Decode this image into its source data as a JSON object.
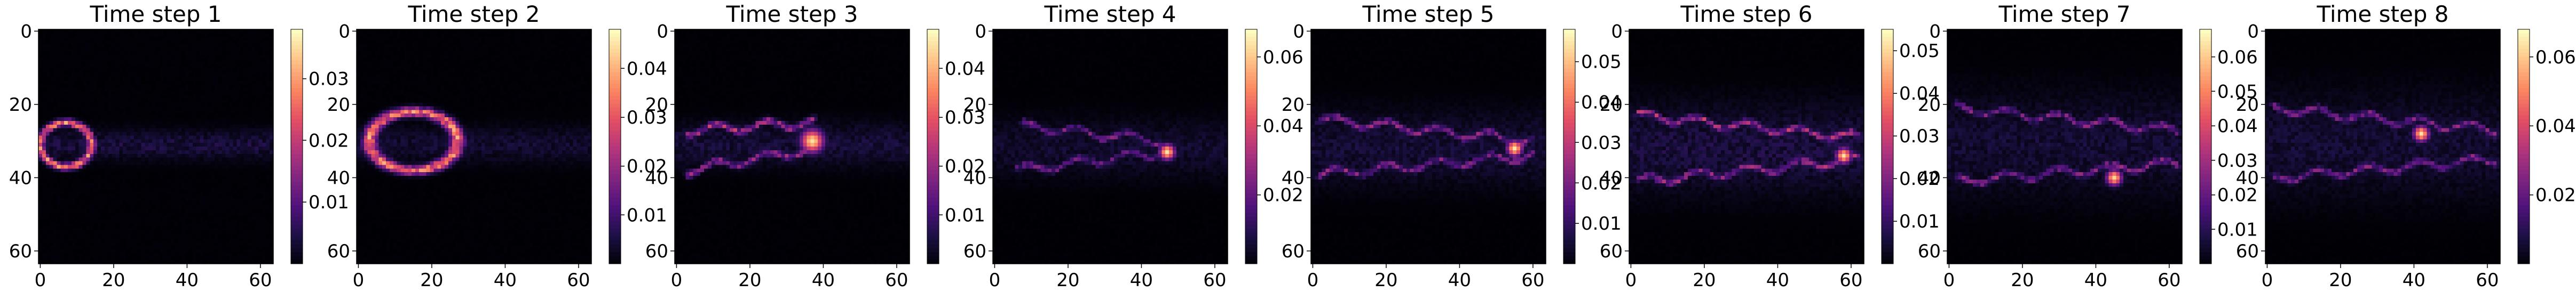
{
  "figure": {
    "panel_count": 8
  },
  "chart_data": [
    {
      "type": "heatmap",
      "title": "Time step 1",
      "xlabel": "",
      "ylabel": "",
      "grid_size": [
        64,
        64
      ],
      "x_ticks": [
        0,
        20,
        40,
        60
      ],
      "y_ticks": [
        0,
        20,
        40,
        60
      ],
      "colormap": "magma",
      "colorbar_ticks": [
        "0.01",
        "0.02",
        "0.03"
      ],
      "colorbar_range": [
        0.0,
        0.038
      ],
      "features": [
        {
          "kind": "ellipse_ring",
          "cx": 7,
          "cy": 31,
          "rx": 7,
          "ry": 6,
          "peak": 0.034
        },
        {
          "kind": "band",
          "x0": 0,
          "x1": 64,
          "yc": 31,
          "width": 4,
          "peak": 0.006
        }
      ]
    },
    {
      "type": "heatmap",
      "title": "Time step 2",
      "xlabel": "",
      "ylabel": "",
      "grid_size": [
        64,
        64
      ],
      "x_ticks": [
        0,
        20,
        40,
        60
      ],
      "y_ticks": [
        0,
        20,
        40,
        60
      ],
      "colormap": "magma",
      "colorbar_ticks": [
        "0.01",
        "0.02",
        "0.03",
        "0.04"
      ],
      "colorbar_range": [
        0.0,
        0.048
      ],
      "features": [
        {
          "kind": "ellipse_ring",
          "cx": 15,
          "cy": 30,
          "rx": 12,
          "ry": 8,
          "peak": 0.042
        },
        {
          "kind": "band",
          "x0": 0,
          "x1": 64,
          "yc": 31,
          "width": 5,
          "peak": 0.006
        }
      ]
    },
    {
      "type": "heatmap",
      "title": "Time step 3",
      "xlabel": "",
      "ylabel": "",
      "grid_size": [
        64,
        64
      ],
      "x_ticks": [
        0,
        20,
        40,
        60
      ],
      "y_ticks": [
        0,
        20,
        40,
        60
      ],
      "colormap": "magma",
      "colorbar_ticks": [
        "0.01",
        "0.02",
        "0.03",
        "0.04"
      ],
      "colorbar_range": [
        0.0,
        0.048
      ],
      "features": [
        {
          "kind": "streak",
          "x0": 3,
          "y0": 27,
          "x1": 37,
          "y1": 25,
          "peak": 0.03
        },
        {
          "kind": "streak",
          "x0": 3,
          "y0": 38,
          "x1": 38,
          "y1": 32,
          "peak": 0.026
        },
        {
          "kind": "blob",
          "cx": 37,
          "cy": 30,
          "r": 3,
          "peak": 0.045
        },
        {
          "kind": "band",
          "x0": 0,
          "x1": 64,
          "yc": 31,
          "width": 6,
          "peak": 0.007
        }
      ]
    },
    {
      "type": "heatmap",
      "title": "Time step 4",
      "xlabel": "",
      "ylabel": "",
      "grid_size": [
        64,
        64
      ],
      "x_ticks": [
        0,
        20,
        40,
        60
      ],
      "y_ticks": [
        0,
        20,
        40,
        60
      ],
      "colormap": "magma",
      "colorbar_ticks": [
        "0.02",
        "0.04",
        "0.06"
      ],
      "colorbar_range": [
        0.0,
        0.068
      ],
      "features": [
        {
          "kind": "streak",
          "x0": 8,
          "y0": 26,
          "x1": 45,
          "y1": 30,
          "peak": 0.03
        },
        {
          "kind": "streak",
          "x0": 6,
          "y0": 38,
          "x1": 46,
          "y1": 33,
          "peak": 0.028
        },
        {
          "kind": "blob",
          "cx": 47,
          "cy": 33,
          "r": 2,
          "peak": 0.064
        },
        {
          "kind": "band",
          "x0": 0,
          "x1": 64,
          "yc": 32,
          "width": 8,
          "peak": 0.008
        }
      ]
    },
    {
      "type": "heatmap",
      "title": "Time step 5",
      "xlabel": "",
      "ylabel": "",
      "grid_size": [
        64,
        64
      ],
      "x_ticks": [
        0,
        20,
        40,
        60
      ],
      "y_ticks": [
        0,
        20,
        40,
        60
      ],
      "colormap": "magma",
      "colorbar_ticks": [
        "0.01",
        "0.02",
        "0.03",
        "0.04",
        "0.05"
      ],
      "colorbar_range": [
        0.0,
        0.058
      ],
      "features": [
        {
          "kind": "streak",
          "x0": 2,
          "y0": 24,
          "x1": 60,
          "y1": 30,
          "peak": 0.03
        },
        {
          "kind": "streak",
          "x0": 2,
          "y0": 39,
          "x1": 60,
          "y1": 34,
          "peak": 0.028
        },
        {
          "kind": "blob",
          "cx": 55,
          "cy": 32,
          "r": 2,
          "peak": 0.055
        },
        {
          "kind": "band",
          "x0": 0,
          "x1": 64,
          "yc": 32,
          "width": 10,
          "peak": 0.008
        }
      ]
    },
    {
      "type": "heatmap",
      "title": "Time step 6",
      "xlabel": "",
      "ylabel": "",
      "grid_size": [
        64,
        64
      ],
      "x_ticks": [
        0,
        20,
        40,
        60
      ],
      "y_ticks": [
        0,
        20,
        40,
        60
      ],
      "colormap": "magma",
      "colorbar_ticks": [
        "0.01",
        "0.02",
        "0.03",
        "0.04",
        "0.05"
      ],
      "colorbar_range": [
        0.0,
        0.055
      ],
      "features": [
        {
          "kind": "streak",
          "x0": 2,
          "y0": 23,
          "x1": 62,
          "y1": 29,
          "peak": 0.032
        },
        {
          "kind": "streak",
          "x0": 2,
          "y0": 41,
          "x1": 62,
          "y1": 35,
          "peak": 0.03
        },
        {
          "kind": "blob",
          "cx": 58,
          "cy": 34,
          "r": 2,
          "peak": 0.052
        },
        {
          "kind": "band",
          "x0": 0,
          "x1": 64,
          "yc": 32,
          "width": 12,
          "peak": 0.009
        }
      ]
    },
    {
      "type": "heatmap",
      "title": "Time step 7",
      "xlabel": "",
      "ylabel": "",
      "grid_size": [
        64,
        64
      ],
      "x_ticks": [
        0,
        20,
        40,
        60
      ],
      "y_ticks": [
        0,
        20,
        40,
        60
      ],
      "colormap": "magma",
      "colorbar_ticks": [
        "0.01",
        "0.02",
        "0.03",
        "0.04",
        "0.05",
        "0.06"
      ],
      "colorbar_range": [
        0.0,
        0.068
      ],
      "features": [
        {
          "kind": "streak",
          "x0": 2,
          "y0": 21,
          "x1": 62,
          "y1": 27,
          "peak": 0.032
        },
        {
          "kind": "streak",
          "x0": 2,
          "y0": 41,
          "x1": 62,
          "y1": 36,
          "peak": 0.032
        },
        {
          "kind": "blob",
          "cx": 45,
          "cy": 40,
          "r": 2,
          "peak": 0.062
        },
        {
          "kind": "band",
          "x0": 0,
          "x1": 64,
          "yc": 31,
          "width": 14,
          "peak": 0.009
        }
      ]
    },
    {
      "type": "heatmap",
      "title": "Time step 8",
      "xlabel": "",
      "ylabel": "",
      "grid_size": [
        64,
        64
      ],
      "x_ticks": [
        0,
        20,
        40,
        60
      ],
      "y_ticks": [
        0,
        20,
        40,
        60
      ],
      "colormap": "magma",
      "colorbar_ticks": [
        "0.02",
        "0.04",
        "0.06"
      ],
      "colorbar_range": [
        0.0,
        0.068
      ],
      "features": [
        {
          "kind": "streak",
          "x0": 2,
          "y0": 21,
          "x1": 62,
          "y1": 27,
          "peak": 0.032
        },
        {
          "kind": "streak",
          "x0": 2,
          "y0": 40,
          "x1": 62,
          "y1": 35,
          "peak": 0.032
        },
        {
          "kind": "blob",
          "cx": 42,
          "cy": 28,
          "r": 2,
          "peak": 0.064
        },
        {
          "kind": "band",
          "x0": 0,
          "x1": 64,
          "yc": 31,
          "width": 14,
          "peak": 0.009
        }
      ]
    }
  ]
}
